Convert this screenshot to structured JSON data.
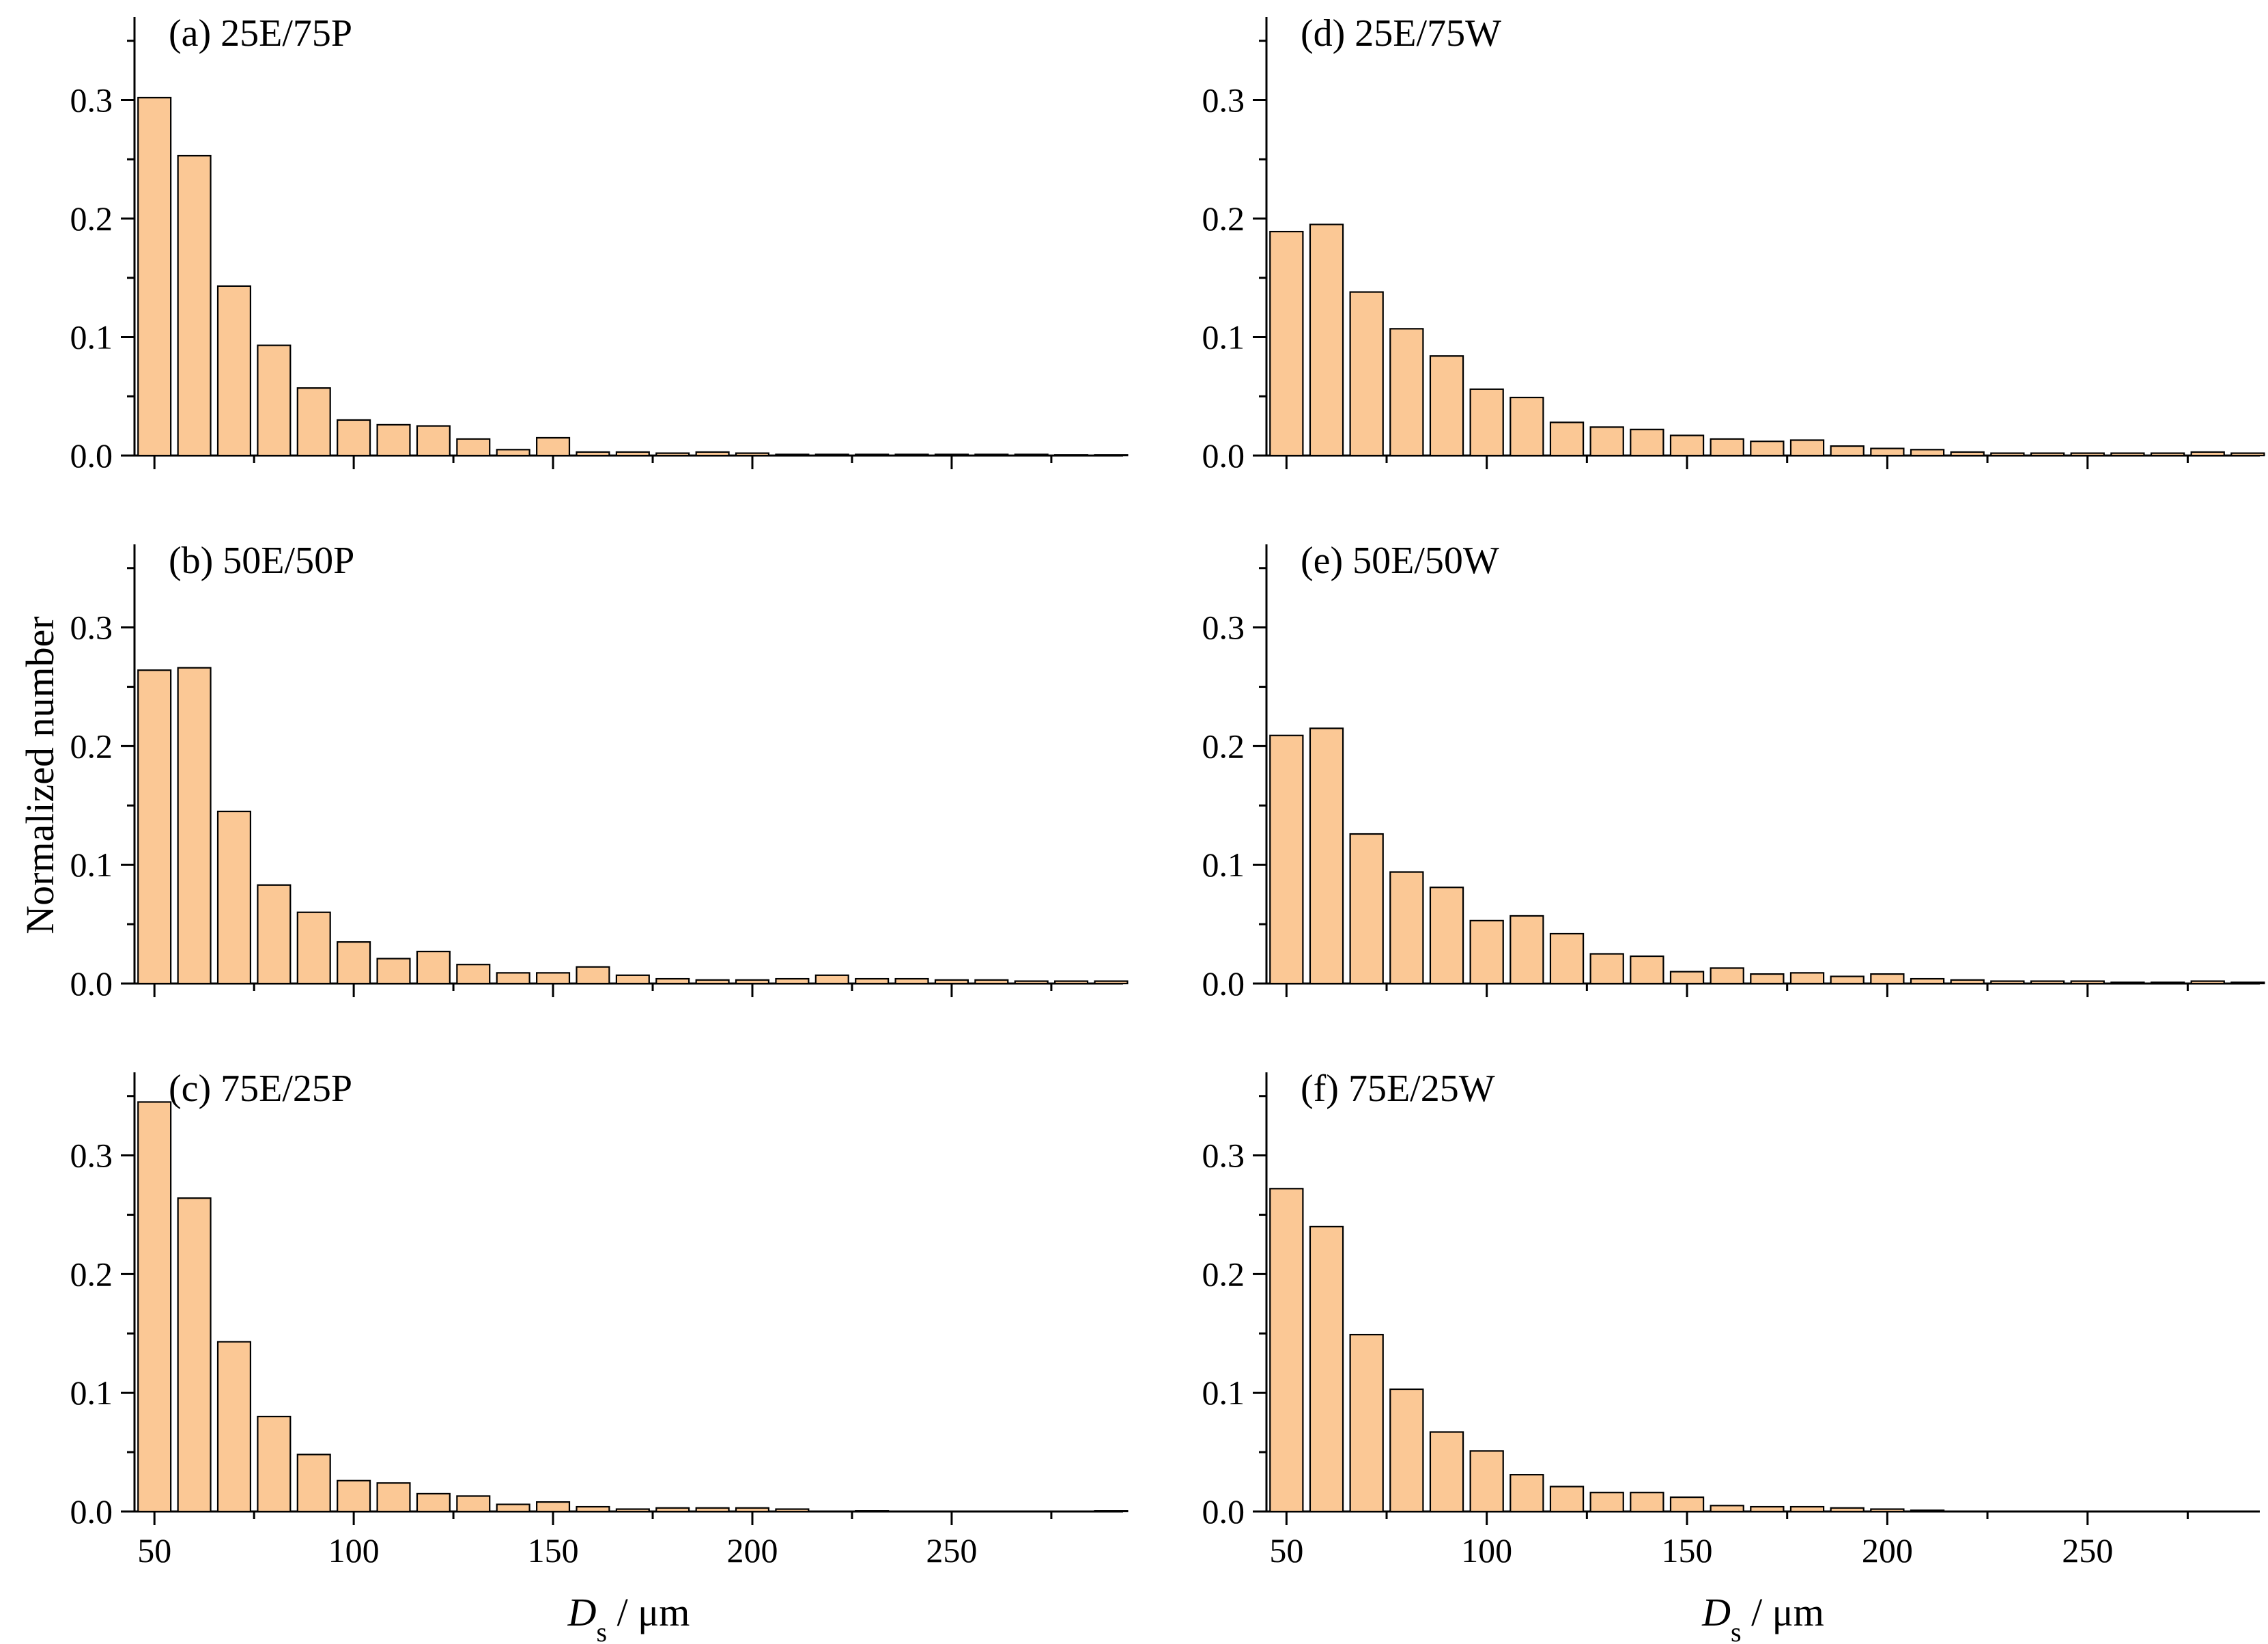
{
  "figure": {
    "ylabel": "Normalized number",
    "xlabel_main": "D",
    "xlabel_sub": "s",
    "xlabel_unit": " / μm",
    "bar_fill": "#FBC895",
    "bar_stroke": "#000000"
  },
  "chart_data": [
    {
      "id": "a",
      "type": "bar",
      "title": "(a) 25E/75P",
      "x": [
        50,
        60,
        70,
        80,
        90,
        100,
        110,
        120,
        130,
        140,
        150,
        160,
        170,
        180,
        190,
        200,
        210,
        220,
        230,
        240,
        250,
        260,
        270,
        280,
        290
      ],
      "values": [
        0.302,
        0.253,
        0.143,
        0.093,
        0.057,
        0.03,
        0.026,
        0.025,
        0.014,
        0.005,
        0.015,
        0.003,
        0.003,
        0.002,
        0.003,
        0.002,
        0.001,
        0.001,
        0.001,
        0.001,
        0.001,
        0.001,
        0.001,
        0.0005,
        0.0005
      ],
      "xlim": [
        45,
        293
      ],
      "ylim": [
        0,
        0.37
      ],
      "xticks": [
        50,
        100,
        150,
        200,
        250
      ],
      "xtick_labels": [
        "50",
        "100",
        "150",
        "200",
        "250"
      ],
      "yticks": [
        0,
        0.1,
        0.2,
        0.3
      ],
      "ytick_labels": [
        "0.0",
        "0.1",
        "0.2",
        "0.3"
      ],
      "show_xticklabels": false
    },
    {
      "id": "b",
      "type": "bar",
      "title": "(b) 50E/50P",
      "x": [
        50,
        60,
        70,
        80,
        90,
        100,
        110,
        120,
        130,
        140,
        150,
        160,
        170,
        180,
        190,
        200,
        210,
        220,
        230,
        240,
        250,
        260,
        270,
        280,
        290
      ],
      "values": [
        0.264,
        0.266,
        0.145,
        0.083,
        0.06,
        0.035,
        0.021,
        0.027,
        0.016,
        0.009,
        0.009,
        0.014,
        0.007,
        0.004,
        0.003,
        0.003,
        0.004,
        0.007,
        0.004,
        0.004,
        0.003,
        0.003,
        0.002,
        0.002,
        0.002
      ],
      "xlim": [
        45,
        293
      ],
      "ylim": [
        0,
        0.37
      ],
      "xticks": [
        50,
        100,
        150,
        200,
        250
      ],
      "xtick_labels": [
        "50",
        "100",
        "150",
        "200",
        "250"
      ],
      "yticks": [
        0,
        0.1,
        0.2,
        0.3
      ],
      "ytick_labels": [
        "0.0",
        "0.1",
        "0.2",
        "0.3"
      ],
      "show_xticklabels": false
    },
    {
      "id": "c",
      "type": "bar",
      "title": "(c) 75E/25P",
      "x": [
        50,
        60,
        70,
        80,
        90,
        100,
        110,
        120,
        130,
        140,
        150,
        160,
        170,
        180,
        190,
        200,
        210,
        220,
        230,
        240,
        250,
        260,
        270,
        280,
        290
      ],
      "values": [
        0.345,
        0.264,
        0.143,
        0.08,
        0.048,
        0.026,
        0.024,
        0.015,
        0.013,
        0.006,
        0.008,
        0.004,
        0.002,
        0.003,
        0.003,
        0.003,
        0.002,
        0,
        0.0005,
        0,
        0,
        0,
        0,
        0,
        0.0005
      ],
      "xlim": [
        45,
        293
      ],
      "ylim": [
        0,
        0.37
      ],
      "xticks": [
        50,
        100,
        150,
        200,
        250
      ],
      "xtick_labels": [
        "50",
        "100",
        "150",
        "200",
        "250"
      ],
      "yticks": [
        0,
        0.1,
        0.2,
        0.3
      ],
      "ytick_labels": [
        "0.0",
        "0.1",
        "0.2",
        "0.3"
      ],
      "show_xticklabels": true
    },
    {
      "id": "d",
      "type": "bar",
      "title": "(d) 25E/75W",
      "x": [
        50,
        60,
        70,
        80,
        90,
        100,
        110,
        120,
        130,
        140,
        150,
        160,
        170,
        180,
        190,
        200,
        210,
        220,
        230,
        240,
        250,
        260,
        270,
        280,
        290
      ],
      "values": [
        0.189,
        0.195,
        0.138,
        0.107,
        0.084,
        0.056,
        0.049,
        0.028,
        0.024,
        0.022,
        0.017,
        0.014,
        0.012,
        0.013,
        0.008,
        0.006,
        0.005,
        0.003,
        0.002,
        0.002,
        0.002,
        0.002,
        0.002,
        0.003,
        0.002
      ],
      "xlim": [
        45,
        293
      ],
      "ylim": [
        0,
        0.37
      ],
      "xticks": [
        50,
        100,
        150,
        200,
        250
      ],
      "xtick_labels": [
        "50",
        "100",
        "150",
        "200",
        "250"
      ],
      "yticks": [
        0,
        0.1,
        0.2,
        0.3
      ],
      "ytick_labels": [
        "0.0",
        "0.1",
        "0.2",
        "0.3"
      ],
      "show_xticklabels": false
    },
    {
      "id": "e",
      "type": "bar",
      "title": "(e) 50E/50W",
      "x": [
        50,
        60,
        70,
        80,
        90,
        100,
        110,
        120,
        130,
        140,
        150,
        160,
        170,
        180,
        190,
        200,
        210,
        220,
        230,
        240,
        250,
        260,
        270,
        280,
        290
      ],
      "values": [
        0.209,
        0.215,
        0.126,
        0.094,
        0.081,
        0.053,
        0.057,
        0.042,
        0.025,
        0.023,
        0.01,
        0.013,
        0.008,
        0.009,
        0.006,
        0.008,
        0.004,
        0.003,
        0.002,
        0.002,
        0.002,
        0.001,
        0.001,
        0.002,
        0.001
      ],
      "xlim": [
        45,
        293
      ],
      "ylim": [
        0,
        0.37
      ],
      "xticks": [
        50,
        100,
        150,
        200,
        250
      ],
      "xtick_labels": [
        "50",
        "100",
        "150",
        "200",
        "250"
      ],
      "yticks": [
        0,
        0.1,
        0.2,
        0.3
      ],
      "ytick_labels": [
        "0.0",
        "0.1",
        "0.2",
        "0.3"
      ],
      "show_xticklabels": false
    },
    {
      "id": "f",
      "type": "bar",
      "title": "(f) 75E/25W",
      "x": [
        50,
        60,
        70,
        80,
        90,
        100,
        110,
        120,
        130,
        140,
        150,
        160,
        170,
        180,
        190,
        200,
        210,
        220,
        230,
        240,
        250,
        260,
        270,
        280,
        290
      ],
      "values": [
        0.272,
        0.24,
        0.149,
        0.103,
        0.067,
        0.051,
        0.031,
        0.021,
        0.016,
        0.016,
        0.012,
        0.005,
        0.004,
        0.004,
        0.003,
        0.002,
        0.001,
        0,
        0,
        0,
        0,
        0,
        0,
        0,
        0
      ],
      "xlim": [
        45,
        293
      ],
      "ylim": [
        0,
        0.37
      ],
      "xticks": [
        50,
        100,
        150,
        200,
        250
      ],
      "xtick_labels": [
        "50",
        "100",
        "150",
        "200",
        "250"
      ],
      "yticks": [
        0,
        0.1,
        0.2,
        0.3
      ],
      "ytick_labels": [
        "0.0",
        "0.1",
        "0.2",
        "0.3"
      ],
      "show_xticklabels": true
    }
  ]
}
